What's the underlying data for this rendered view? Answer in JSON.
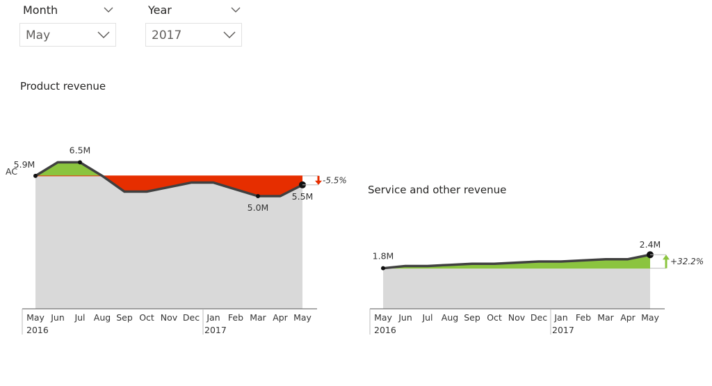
{
  "filters": {
    "month": {
      "label": "Month",
      "value": "May"
    },
    "year": {
      "label": "Year",
      "value": "2017"
    }
  },
  "colors": {
    "positive": "#8bc43f",
    "negative": "#e62e00",
    "area": "#d9d9d9",
    "line": "#404040"
  },
  "chart_data": [
    {
      "type": "area",
      "title": "Product revenue",
      "series_label": "AC",
      "categories": [
        "May",
        "Jun",
        "Jul",
        "Aug",
        "Sep",
        "Oct",
        "Nov",
        "Dec",
        "Jan",
        "Feb",
        "Mar",
        "Apr",
        "May"
      ],
      "year_labels": [
        {
          "index": 0,
          "label": "2016"
        },
        {
          "index": 8,
          "label": "2017"
        }
      ],
      "values": [
        5.9,
        6.5,
        6.5,
        5.9,
        5.2,
        5.2,
        5.4,
        5.6,
        5.6,
        5.3,
        5.0,
        5.0,
        5.5
      ],
      "ylim": [
        0,
        7
      ],
      "data_labels": [
        {
          "index": 0,
          "label": "5.9M"
        },
        {
          "index": 2,
          "label": "6.5M"
        },
        {
          "index": 10,
          "label": "5.0M"
        },
        {
          "index": 12,
          "label": "5.5M"
        }
      ],
      "variance": {
        "label": "-5.5%",
        "direction": "down"
      }
    },
    {
      "type": "area",
      "title": "Service and other revenue",
      "categories": [
        "May",
        "Jun",
        "Jul",
        "Aug",
        "Sep",
        "Oct",
        "Nov",
        "Dec",
        "Jan",
        "Feb",
        "Mar",
        "Apr",
        "May"
      ],
      "year_labels": [
        {
          "index": 0,
          "label": "2016"
        },
        {
          "index": 8,
          "label": "2017"
        }
      ],
      "values": [
        1.8,
        1.9,
        1.9,
        1.95,
        2.0,
        2.0,
        2.05,
        2.1,
        2.1,
        2.15,
        2.2,
        2.2,
        2.4
      ],
      "ylim": [
        0,
        7
      ],
      "data_labels": [
        {
          "index": 0,
          "label": "1.8M"
        },
        {
          "index": 12,
          "label": "2.4M"
        }
      ],
      "variance": {
        "label": "+32.2%",
        "direction": "up"
      }
    }
  ]
}
